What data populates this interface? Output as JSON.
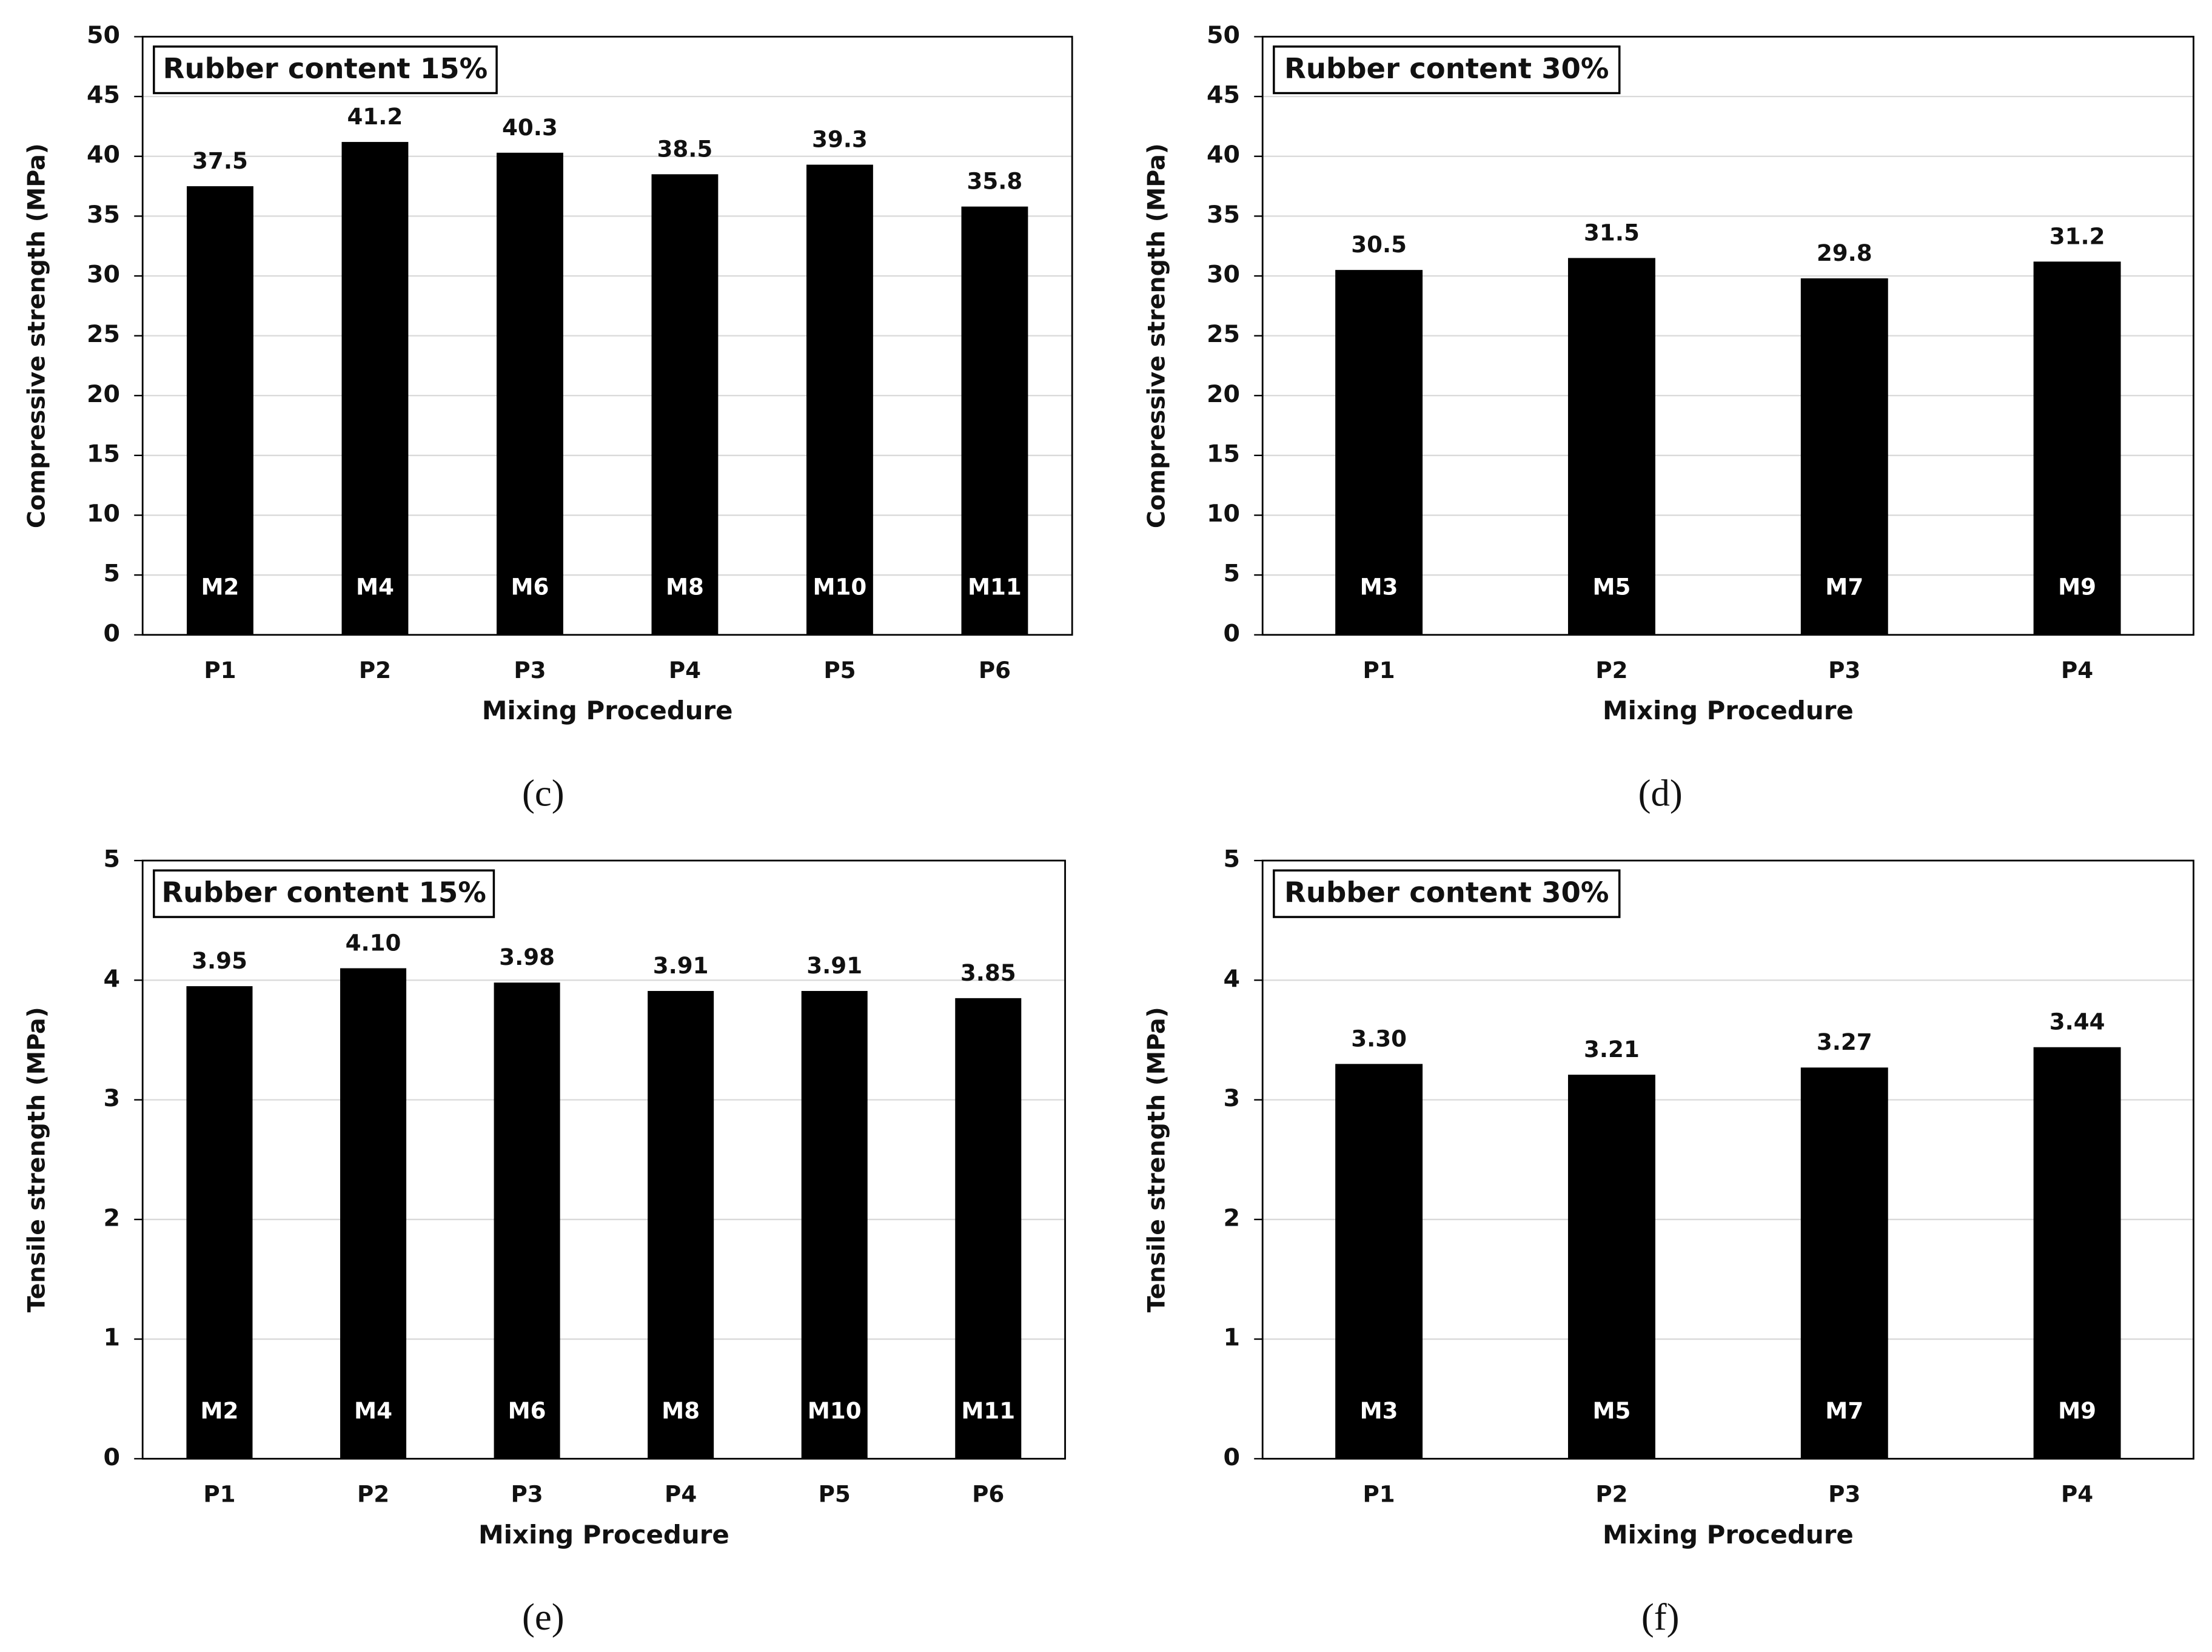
{
  "chart_data": [
    {
      "type": "bar",
      "title": "Rubber content 15%",
      "panel_label": "(c)",
      "x_label": "Mixing Procedure",
      "y_label": "Compressive strength (MPa)",
      "categories": [
        "P1",
        "P2",
        "P3",
        "P4",
        "P5",
        "P6"
      ],
      "values": [
        37.5,
        41.2,
        40.3,
        38.5,
        39.3,
        35.8
      ],
      "bar_labels": [
        "M2",
        "M4",
        "M6",
        "M8",
        "M10",
        "M11"
      ],
      "color": "#000000",
      "ylim": [
        0,
        50
      ],
      "yticks": [
        0,
        5,
        10,
        15,
        20,
        25,
        30,
        35,
        40,
        45,
        50
      ],
      "grid": true
    },
    {
      "type": "bar",
      "title": "Rubber content 30%",
      "panel_label": "(d)",
      "x_label": "Mixing Procedure",
      "y_label": "Compressive strength (MPa)",
      "categories": [
        "P1",
        "P2",
        "P3",
        "P4"
      ],
      "values": [
        30.5,
        31.5,
        29.8,
        31.2
      ],
      "bar_labels": [
        "M3",
        "M5",
        "M7",
        "M9"
      ],
      "color": "#000000",
      "ylim": [
        0,
        50
      ],
      "yticks": [
        0,
        5,
        10,
        15,
        20,
        25,
        30,
        35,
        40,
        45,
        50
      ],
      "grid": true
    },
    {
      "type": "bar",
      "title": "Rubber content 15%",
      "panel_label": "(e)",
      "x_label": "Mixing Procedure",
      "y_label": "Tensile strength (MPa)",
      "categories": [
        "P1",
        "P2",
        "P3",
        "P4",
        "P5",
        "P6"
      ],
      "values": [
        3.95,
        4.1,
        3.98,
        3.91,
        3.91,
        3.85
      ],
      "value_labels": [
        "3.95",
        "4.10",
        "3.98",
        "3.91",
        "3.91",
        "3.85"
      ],
      "bar_labels": [
        "M2",
        "M4",
        "M6",
        "M8",
        "M10",
        "M11"
      ],
      "color": "#000000",
      "ylim": [
        0,
        5
      ],
      "yticks": [
        0,
        1,
        2,
        3,
        4,
        5
      ],
      "grid": true
    },
    {
      "type": "bar",
      "title": "Rubber content 30%",
      "panel_label": "(f)",
      "x_label": "Mixing Procedure",
      "y_label": "Tensile strength (MPa)",
      "categories": [
        "P1",
        "P2",
        "P3",
        "P4"
      ],
      "values": [
        3.3,
        3.21,
        3.27,
        3.44
      ],
      "value_labels": [
        "3.30",
        "3.21",
        "3.27",
        "3.44"
      ],
      "bar_labels": [
        "M3",
        "M5",
        "M7",
        "M9"
      ],
      "color": "#000000",
      "ylim": [
        0,
        5
      ],
      "yticks": [
        0,
        1,
        2,
        3,
        4,
        5
      ],
      "grid": true
    }
  ]
}
